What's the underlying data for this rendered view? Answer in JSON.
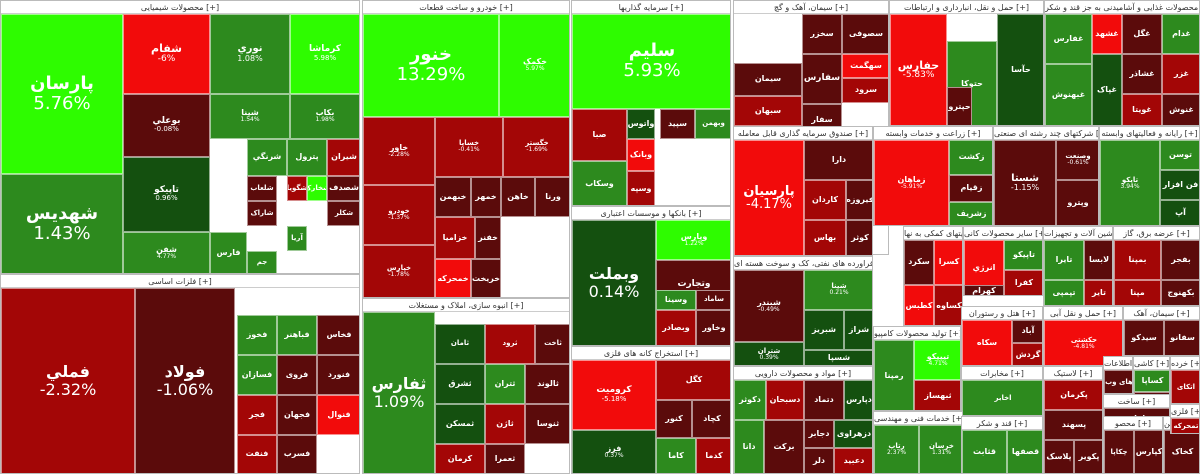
{
  "colors": {
    "bright_green": "#2efc00",
    "green": "#2d8a1e",
    "dark_green": "#14500f",
    "red": "#f20b0b",
    "dark_red": "#a30606",
    "maroon": "#5b0b0b"
  },
  "sectors": [
    {
      "title": "محصولات شیمیایی [+]",
      "tiles": [
        {
          "symbol": "پارسان",
          "change": "5.76%"
        },
        {
          "symbol": "شفام",
          "change": "-6%"
        },
        {
          "symbol": "نوري",
          "change": "1.08%"
        },
        {
          "symbol": "کرماشا",
          "change": "5.98%"
        },
        {
          "symbol": "بوعلي",
          "change": "-0.08%"
        },
        {
          "symbol": "شپنا",
          "change": "1.54%"
        },
        {
          "symbol": "بکاب",
          "change": "1.98%"
        },
        {
          "symbol": "شهديس",
          "change": "1.43%"
        },
        {
          "symbol": "تاپيکو",
          "change": "0.96%"
        },
        {
          "symbol": "شرنگي",
          "change": ""
        },
        {
          "symbol": "پترول",
          "change": ""
        },
        {
          "symbol": "شيران",
          "change": ""
        },
        {
          "symbol": "شصدف",
          "change": ""
        },
        {
          "symbol": "شخارک",
          "change": ""
        },
        {
          "symbol": "شلعاب",
          "change": ""
        },
        {
          "symbol": "شگويا",
          "change": ""
        },
        {
          "symbol": "شکلر",
          "change": ""
        },
        {
          "symbol": "شاراک",
          "change": ""
        },
        {
          "symbol": "آريا",
          "change": ""
        },
        {
          "symbol": "جم",
          "change": ""
        },
        {
          "symbol": "شفن",
          "change": "4.77%"
        },
        {
          "symbol": "فارس",
          "change": ""
        }
      ]
    },
    {
      "title": "فلزات اساسی [+]",
      "tiles": [
        {
          "symbol": "فملي",
          "change": "-2.32%"
        },
        {
          "symbol": "فولاد",
          "change": "-1.06%"
        },
        {
          "symbol": "فخوز",
          "change": ""
        },
        {
          "symbol": "فباهنر",
          "change": ""
        },
        {
          "symbol": "فخاس",
          "change": ""
        },
        {
          "symbol": "فسازان",
          "change": ""
        },
        {
          "symbol": "فروی",
          "change": ""
        },
        {
          "symbol": "فجر",
          "change": ""
        },
        {
          "symbol": "فجهان",
          "change": ""
        },
        {
          "symbol": "فنورد",
          "change": ""
        },
        {
          "symbol": "فسرب",
          "change": ""
        },
        {
          "symbol": "فنفت",
          "change": ""
        },
        {
          "symbol": "فنوال",
          "change": ""
        }
      ]
    },
    {
      "title": "خودرو و ساخت قطعات [+]",
      "tiles": [
        {
          "symbol": "خنور",
          "change": "13.29%"
        },
        {
          "symbol": "خکمک",
          "change": "5.97%"
        },
        {
          "symbol": "خاور",
          "change": "-2.28%"
        },
        {
          "symbol": "خساپا",
          "change": "-0.41%"
        },
        {
          "symbol": "خگستر",
          "change": "-1.69%"
        },
        {
          "symbol": "خودرو",
          "change": "-1.37%"
        },
        {
          "symbol": "خپارس",
          "change": "-1.78%"
        },
        {
          "symbol": "خزامیا",
          "change": ""
        },
        {
          "symbol": "خمهر",
          "change": ""
        },
        {
          "symbol": "خفنر",
          "change": ""
        },
        {
          "symbol": "خمحرکه",
          "change": ""
        },
        {
          "symbol": "خريخت",
          "change": ""
        },
        {
          "symbol": "خبهمن",
          "change": ""
        },
        {
          "symbol": "خاهن",
          "change": ""
        },
        {
          "symbol": "ورنا",
          "change": ""
        }
      ]
    },
    {
      "title": "انبوه سازی، املاک و مستغلات [+]",
      "tiles": [
        {
          "symbol": "ثفارس",
          "change": "1.09%"
        },
        {
          "symbol": "ثامان",
          "change": ""
        },
        {
          "symbol": "ثرود",
          "change": ""
        },
        {
          "symbol": "ثاخت",
          "change": ""
        },
        {
          "symbol": "ثالوند",
          "change": ""
        },
        {
          "symbol": "ثتران",
          "change": ""
        },
        {
          "symbol": "ثنوسا",
          "change": ""
        },
        {
          "symbol": "ثشرق",
          "change": ""
        },
        {
          "symbol": "ثمسکن",
          "change": ""
        },
        {
          "symbol": "کرمان",
          "change": ""
        },
        {
          "symbol": "ثاژن",
          "change": ""
        },
        {
          "symbol": "ثعمرا",
          "change": ""
        }
      ]
    },
    {
      "title": "سرمایه گذاریها [+]",
      "tiles": [
        {
          "symbol": "سليم",
          "change": "5.93%"
        },
        {
          "symbol": "صبا",
          "change": ""
        },
        {
          "symbol": "واتوس",
          "change": ""
        },
        {
          "symbol": "سپید",
          "change": ""
        },
        {
          "symbol": "وبانک",
          "change": ""
        },
        {
          "symbol": "وسپه",
          "change": ""
        },
        {
          "symbol": "وسکاب",
          "change": ""
        },
        {
          "symbol": "وبهمن",
          "change": ""
        }
      ]
    },
    {
      "title": "بانکها و موسسات اعتباری [+]",
      "tiles": [
        {
          "symbol": "وبملت",
          "change": "0.14%"
        },
        {
          "symbol": "وپارس",
          "change": "1.22%"
        },
        {
          "symbol": "وتجارت",
          "change": ""
        },
        {
          "symbol": "وبصادر",
          "change": ""
        },
        {
          "symbol": "وخاور",
          "change": ""
        },
        {
          "symbol": "ساماد",
          "change": ""
        },
        {
          "symbol": "وسينا",
          "change": ""
        }
      ]
    },
    {
      "title": "استخراج کانه های فلزی [+]",
      "tiles": [
        {
          "symbol": "کروميت",
          "change": "-5.18%"
        },
        {
          "symbol": "فرز",
          "change": "0.37%"
        },
        {
          "symbol": "کگل",
          "change": ""
        },
        {
          "symbol": "کچاد",
          "change": ""
        },
        {
          "symbol": "کنور",
          "change": ""
        },
        {
          "symbol": "کاما",
          "change": ""
        },
        {
          "symbol": "کدما",
          "change": ""
        },
        {
          "symbol": "کگهر",
          "change": ""
        }
      ]
    },
    {
      "title": "سیمان، آهک و گچ [+]",
      "tiles": [
        {
          "symbol": "سخزر",
          "change": ""
        },
        {
          "symbol": "سصوفی",
          "change": ""
        },
        {
          "symbol": "سهگمت",
          "change": ""
        },
        {
          "symbol": "سرود",
          "change": ""
        },
        {
          "symbol": "سفارس",
          "change": ""
        },
        {
          "symbol": "سفار",
          "change": ""
        },
        {
          "symbol": "سيمان",
          "change": ""
        },
        {
          "symbol": "سبهان",
          "change": ""
        },
        {
          "symbol": "سپنکو",
          "change": ""
        },
        {
          "symbol": "ستران",
          "change": ""
        }
      ]
    },
    {
      "title": "حمل و نقل، انبارداری و ارتباطات [+]",
      "tiles": [
        {
          "symbol": "حفارس",
          "change": "-5.83%"
        },
        {
          "symbol": "حتوکا",
          "change": ""
        },
        {
          "symbol": "حپترو",
          "change": ""
        },
        {
          "symbol": "حآسا",
          "change": ""
        }
      ]
    },
    {
      "title": "محصولات غذایی و آشامیدنی به جز قند و شکر [+]",
      "tiles": [
        {
          "symbol": "غفارس",
          "change": ""
        },
        {
          "symbol": "غشهد",
          "change": ""
        },
        {
          "symbol": "غگل",
          "change": ""
        },
        {
          "symbol": "غدام",
          "change": ""
        },
        {
          "symbol": "غزر",
          "change": ""
        },
        {
          "symbol": "غشاذر",
          "change": ""
        },
        {
          "symbol": "غويتا",
          "change": ""
        },
        {
          "symbol": "غپاک",
          "change": ""
        },
        {
          "symbol": "غبهنوش",
          "change": ""
        },
        {
          "symbol": "غنوش",
          "change": ""
        }
      ]
    },
    {
      "title": "صندوق سرمایه گذاری قابل معامله [+]",
      "tiles": [
        {
          "symbol": "پارسیان",
          "change": "-4.17%"
        },
        {
          "symbol": "دارا",
          "change": ""
        },
        {
          "symbol": "کاردان",
          "change": ""
        },
        {
          "symbol": "بهاس",
          "change": ""
        },
        {
          "symbol": "فيروزه",
          "change": ""
        },
        {
          "symbol": "کوثر",
          "change": ""
        }
      ]
    },
    {
      "title": "زراعت و خدمات وابسته [+]",
      "tiles": [
        {
          "symbol": "زماهان",
          "change": "-5.91%"
        },
        {
          "symbol": "زکشت",
          "change": ""
        },
        {
          "symbol": "زقيام",
          "change": ""
        },
        {
          "symbol": "زشريف",
          "change": ""
        }
      ]
    },
    {
      "title": "شرکتهای چند رشته ای صنعتی [+]",
      "tiles": [
        {
          "symbol": "شستا",
          "change": "-1.15%"
        },
        {
          "symbol": "وصنعت",
          "change": "-0.61%"
        },
        {
          "symbol": "وپترو",
          "change": ""
        }
      ]
    },
    {
      "title": "رایانه و فعالیتهای وابسته [+]",
      "tiles": [
        {
          "symbol": "تاپکو",
          "change": "3.94%"
        },
        {
          "symbol": "توسن",
          "change": ""
        },
        {
          "symbol": "فن افزار",
          "change": ""
        },
        {
          "symbol": "آپ",
          "change": ""
        }
      ]
    },
    {
      "title": "فراورده های نفتی، کک و سوخت هسته ای [+]",
      "tiles": [
        {
          "symbol": "شبندر",
          "change": "-0.49%"
        },
        {
          "symbol": "شپنا",
          "change": "0.21%"
        },
        {
          "symbol": "شتران",
          "change": "0.39%"
        },
        {
          "symbol": "شبريز",
          "change": ""
        },
        {
          "symbol": "شراز",
          "change": ""
        },
        {
          "symbol": "شسپا",
          "change": ""
        }
      ]
    },
    {
      "title": "مواد و محصولات دارویی [+]",
      "tiles": [
        {
          "symbol": "دکوثر",
          "change": ""
        },
        {
          "symbol": "دسبحان",
          "change": ""
        },
        {
          "symbol": "دتماد",
          "change": ""
        },
        {
          "symbol": "دپارس",
          "change": ""
        },
        {
          "symbol": "دانا",
          "change": ""
        },
        {
          "symbol": "برکت",
          "change": ""
        },
        {
          "symbol": "دجابر",
          "change": ""
        },
        {
          "symbol": "دزهراوی",
          "change": ""
        },
        {
          "symbol": "دلر",
          "change": ""
        },
        {
          "symbol": "دعبيد",
          "change": ""
        }
      ]
    },
    {
      "title": "فعالیتهای کمکی به نها [+]",
      "tiles": [
        {
          "symbol": "سکرد",
          "change": ""
        },
        {
          "symbol": "کسرا",
          "change": ""
        },
        {
          "symbol": "کطبس",
          "change": ""
        },
        {
          "symbol": "کساوه",
          "change": ""
        }
      ]
    },
    {
      "title": "سایر محصولات کانی [+]",
      "tiles": [
        {
          "symbol": "انرژي",
          "change": ""
        },
        {
          "symbol": "تاپيکو",
          "change": ""
        },
        {
          "symbol": "کفرا",
          "change": ""
        },
        {
          "symbol": "کهرام",
          "change": ""
        }
      ]
    },
    {
      "title": "ماشین آلات و تجهیزات [+]",
      "tiles": [
        {
          "symbol": "تایرا",
          "change": ""
        },
        {
          "symbol": "لابسا",
          "change": ""
        },
        {
          "symbol": "تپمپی",
          "change": ""
        },
        {
          "symbol": "تاير",
          "change": ""
        }
      ]
    },
    {
      "title": "عرضه برق، گاز [+]",
      "tiles": [
        {
          "symbol": "بمپنا",
          "change": ""
        },
        {
          "symbol": "بفجر",
          "change": ""
        },
        {
          "symbol": "مپنا",
          "change": ""
        },
        {
          "symbol": "بکهنوج",
          "change": ""
        }
      ]
    },
    {
      "title": "تولید محصولات کامپیو [+]",
      "tiles": [
        {
          "symbol": "رمپنا",
          "change": ""
        },
        {
          "symbol": "تيپيکو",
          "change": "4.71%"
        },
        {
          "symbol": "ثبهساز",
          "change": ""
        }
      ]
    },
    {
      "title": "هتل و رستوران [+]",
      "tiles": [
        {
          "symbol": "سکاه",
          "change": ""
        },
        {
          "symbol": "آباد",
          "change": ""
        },
        {
          "symbol": "گردش",
          "change": ""
        }
      ]
    },
    {
      "title": "حمل و نقل آبی [+]",
      "tiles": [
        {
          "symbol": "حکشتی",
          "change": "-4.81%"
        }
      ]
    },
    {
      "title": "سیمان، آهک [+]",
      "tiles": [
        {
          "symbol": "سيدکو",
          "change": ""
        },
        {
          "symbol": "سفانو",
          "change": ""
        },
        {
          "symbol": "ساروم",
          "change": ""
        }
      ]
    },
    {
      "title": "مخابرات [+]",
      "tiles": [
        {
          "symbol": "اخابر",
          "change": ""
        },
        {
          "symbol": "همراه",
          "change": ""
        }
      ]
    },
    {
      "title": "خدمات فنی و مهندسی [+]",
      "tiles": [
        {
          "symbol": "رتاپ",
          "change": "2.37%"
        },
        {
          "symbol": "خرسان",
          "change": "1.31%"
        }
      ]
    },
    {
      "title": "قند و شکر [+]",
      "tiles": [
        {
          "symbol": "قثابت",
          "change": ""
        },
        {
          "symbol": "قصفها",
          "change": ""
        }
      ]
    },
    {
      "title": "لاستیک [+]",
      "tiles": [
        {
          "symbol": "پکرمان",
          "change": ""
        },
        {
          "symbol": "پسهند",
          "change": ""
        },
        {
          "symbol": "پلاسک",
          "change": ""
        },
        {
          "symbol": "پکویر",
          "change": ""
        }
      ]
    },
    {
      "title": "اطلاعات [+]",
      "tiles": [
        {
          "symbol": "های وب",
          "change": ""
        }
      ]
    },
    {
      "title": "کاشی [+]",
      "tiles": [
        {
          "symbol": "کساپا",
          "change": ""
        },
        {
          "symbol": "کسعدی",
          "change": ""
        }
      ]
    },
    {
      "title": "خرده [+]",
      "tiles": [
        {
          "symbol": "اتکای",
          "change": ""
        }
      ]
    },
    {
      "title": "ساخت [+]",
      "tiles": [
        {
          "symbol": "اقل",
          "change": ""
        },
        {
          "symbol": "تکنو",
          "change": ""
        }
      ]
    },
    {
      "title": "محصو [+]",
      "tiles": [
        {
          "symbol": "چکاپا",
          "change": ""
        },
        {
          "symbol": "کپارس",
          "change": ""
        }
      ]
    },
    {
      "title": "ماشین [+]",
      "tiles": [
        {
          "symbol": "کخاک",
          "change": ""
        }
      ]
    },
    {
      "title": "فلزی [+]",
      "tiles": [
        {
          "symbol": "تمحرکه",
          "change": ""
        }
      ]
    }
  ]
}
